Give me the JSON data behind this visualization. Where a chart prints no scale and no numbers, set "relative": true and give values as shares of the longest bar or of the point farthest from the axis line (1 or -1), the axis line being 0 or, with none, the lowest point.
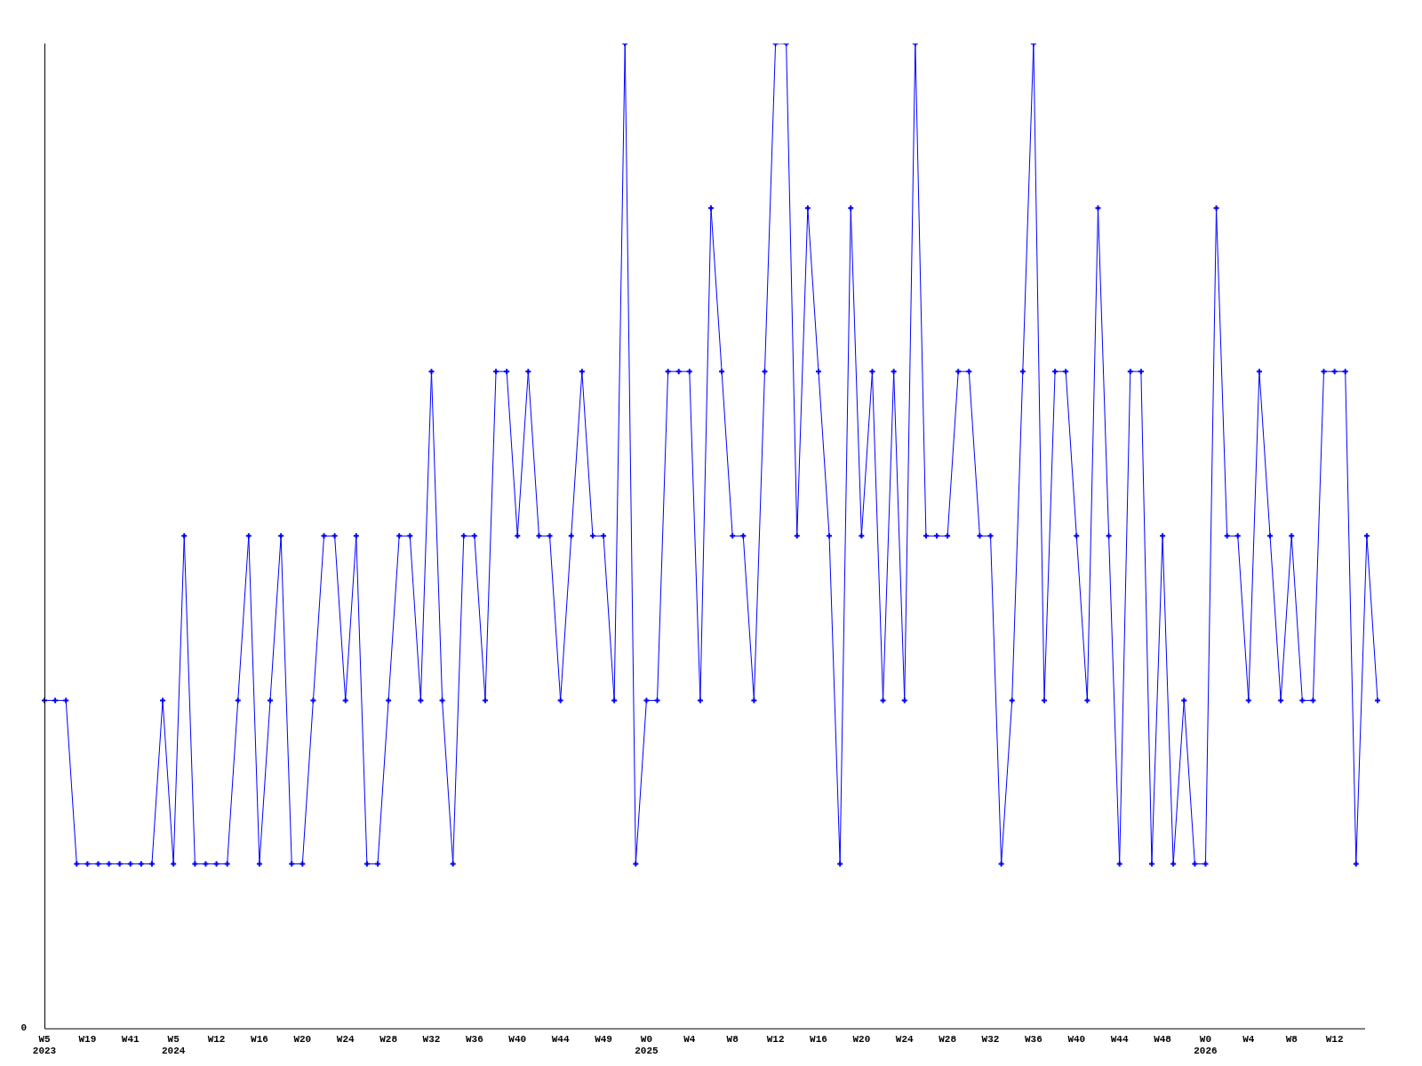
{
  "chart_data": {
    "type": "line",
    "relative": true,
    "color": "#0000ff",
    "marker": "cross",
    "line_style": "solid",
    "grid": false,
    "legend": false,
    "annotations": [
      "0"
    ],
    "categories": [
      "W5\n2023",
      null,
      null,
      null,
      "W19",
      null,
      null,
      null,
      "W41",
      null,
      null,
      null,
      "W5\n2024",
      null,
      null,
      null,
      "W12",
      null,
      null,
      null,
      "W16",
      null,
      null,
      null,
      "W20",
      null,
      null,
      null,
      "W24",
      null,
      null,
      null,
      "W28",
      null,
      null,
      null,
      "W32",
      null,
      null,
      null,
      "W36",
      null,
      null,
      null,
      "W40",
      null,
      null,
      null,
      "W44",
      null,
      null,
      null,
      "W49",
      null,
      null,
      null,
      "W0\n2025",
      null,
      null,
      null,
      "W4",
      null,
      null,
      null,
      "W8",
      null,
      null,
      null,
      "W12",
      null,
      null,
      null,
      "W16",
      null,
      null,
      null,
      "W20",
      null,
      null,
      null,
      "W24",
      null,
      null,
      null,
      "W28",
      null,
      null,
      null,
      "W32",
      null,
      null,
      null,
      "W36",
      null,
      null,
      null,
      "W40",
      null,
      null,
      null,
      "W44",
      null,
      null,
      null,
      "W48",
      null,
      null,
      null,
      "W0\n2026",
      null,
      null,
      null,
      "W4",
      null,
      null,
      null,
      "W8",
      null,
      null,
      null,
      "W12",
      null,
      null,
      null,
      null
    ],
    "values": [
      0.333,
      0.333,
      0.333,
      0.167,
      0.167,
      0.167,
      0.167,
      0.167,
      0.167,
      0.167,
      0.167,
      0.333,
      0.167,
      0.5,
      0.167,
      0.167,
      0.167,
      0.167,
      0.333,
      0.5,
      0.167,
      0.333,
      0.5,
      0.167,
      0.167,
      0.333,
      0.5,
      0.5,
      0.333,
      0.5,
      0.167,
      0.167,
      0.333,
      0.5,
      0.5,
      0.333,
      0.667,
      0.333,
      0.167,
      0.5,
      0.5,
      0.333,
      0.667,
      0.667,
      0.5,
      0.667,
      0.5,
      0.5,
      0.333,
      0.5,
      0.667,
      0.5,
      0.5,
      0.333,
      1,
      0.167,
      0.333,
      0.333,
      0.667,
      0.667,
      0.667,
      0.333,
      0.833,
      0.667,
      0.5,
      0.5,
      0.333,
      0.667,
      1,
      1,
      0.5,
      0.833,
      0.667,
      0.5,
      0.167,
      0.833,
      0.5,
      0.667,
      0.333,
      0.667,
      0.333,
      1,
      0.5,
      0.5,
      0.5,
      0.667,
      0.667,
      0.5,
      0.5,
      0.167,
      0.333,
      0.667,
      1,
      0.333,
      0.667,
      0.667,
      0.5,
      0.333,
      0.833,
      0.5,
      0.167,
      0.667,
      0.667,
      0.167,
      0.5,
      0.167,
      0.333,
      0.167,
      0.167,
      0.833,
      0.5,
      0.5,
      0.333,
      0.667,
      0.5,
      0.333,
      0.5,
      0.333,
      0.333,
      0.667,
      0.667,
      0.667,
      0.167,
      0.5,
      0.333
    ]
  }
}
